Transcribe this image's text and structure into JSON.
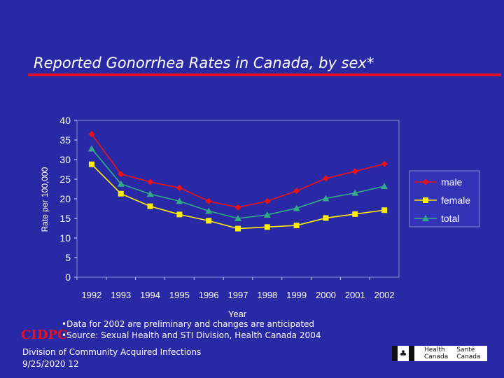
{
  "slide": {
    "title": "Reported Gonorrhea Rates in Canada, by sex*",
    "footnotes": [
      "•Data for 2002 are preliminary and changes are anticipated",
      "•Source:  Sexual Health and STI Division, Health Canada 2004"
    ],
    "logo_text": "CIDPC",
    "division_lines": [
      "Division of Community Acquired Infections",
      " 9/25/2020 12"
    ],
    "badge": {
      "col1": [
        "Health",
        "Canada"
      ],
      "col2": [
        "Santé",
        "Canada"
      ],
      "flag_icon": "maple-leaf-icon"
    }
  },
  "colors": {
    "background": "#2929a6",
    "title_rule": "#e8101e",
    "male": "#ee1111",
    "female": "#ffee00",
    "total": "#33aa88"
  },
  "chart_data": {
    "type": "line",
    "title": "",
    "xlabel": "Year",
    "ylabel": "Rate per 100,000",
    "x": [
      "1992",
      "1993",
      "1994",
      "1995",
      "1996",
      "1997",
      "1998",
      "1999",
      "2000",
      "2001",
      "2002"
    ],
    "ylim": [
      0,
      40
    ],
    "yticks": [
      0,
      5,
      10,
      15,
      20,
      25,
      30,
      35,
      40
    ],
    "grid": false,
    "legend": "right",
    "series": [
      {
        "name": "male",
        "marker": "diamond",
        "values": [
          36.5,
          26.3,
          24.3,
          22.8,
          19.4,
          17.8,
          19.4,
          22.0,
          25.2,
          27.0,
          28.9
        ]
      },
      {
        "name": "female",
        "marker": "square",
        "values": [
          28.8,
          21.3,
          18.1,
          16.0,
          14.4,
          12.4,
          12.8,
          13.2,
          15.1,
          16.1,
          17.1
        ]
      },
      {
        "name": "total",
        "marker": "triangle",
        "values": [
          32.8,
          23.8,
          21.2,
          19.4,
          16.9,
          15.0,
          15.9,
          17.6,
          20.1,
          21.5,
          23.2
        ]
      }
    ]
  }
}
